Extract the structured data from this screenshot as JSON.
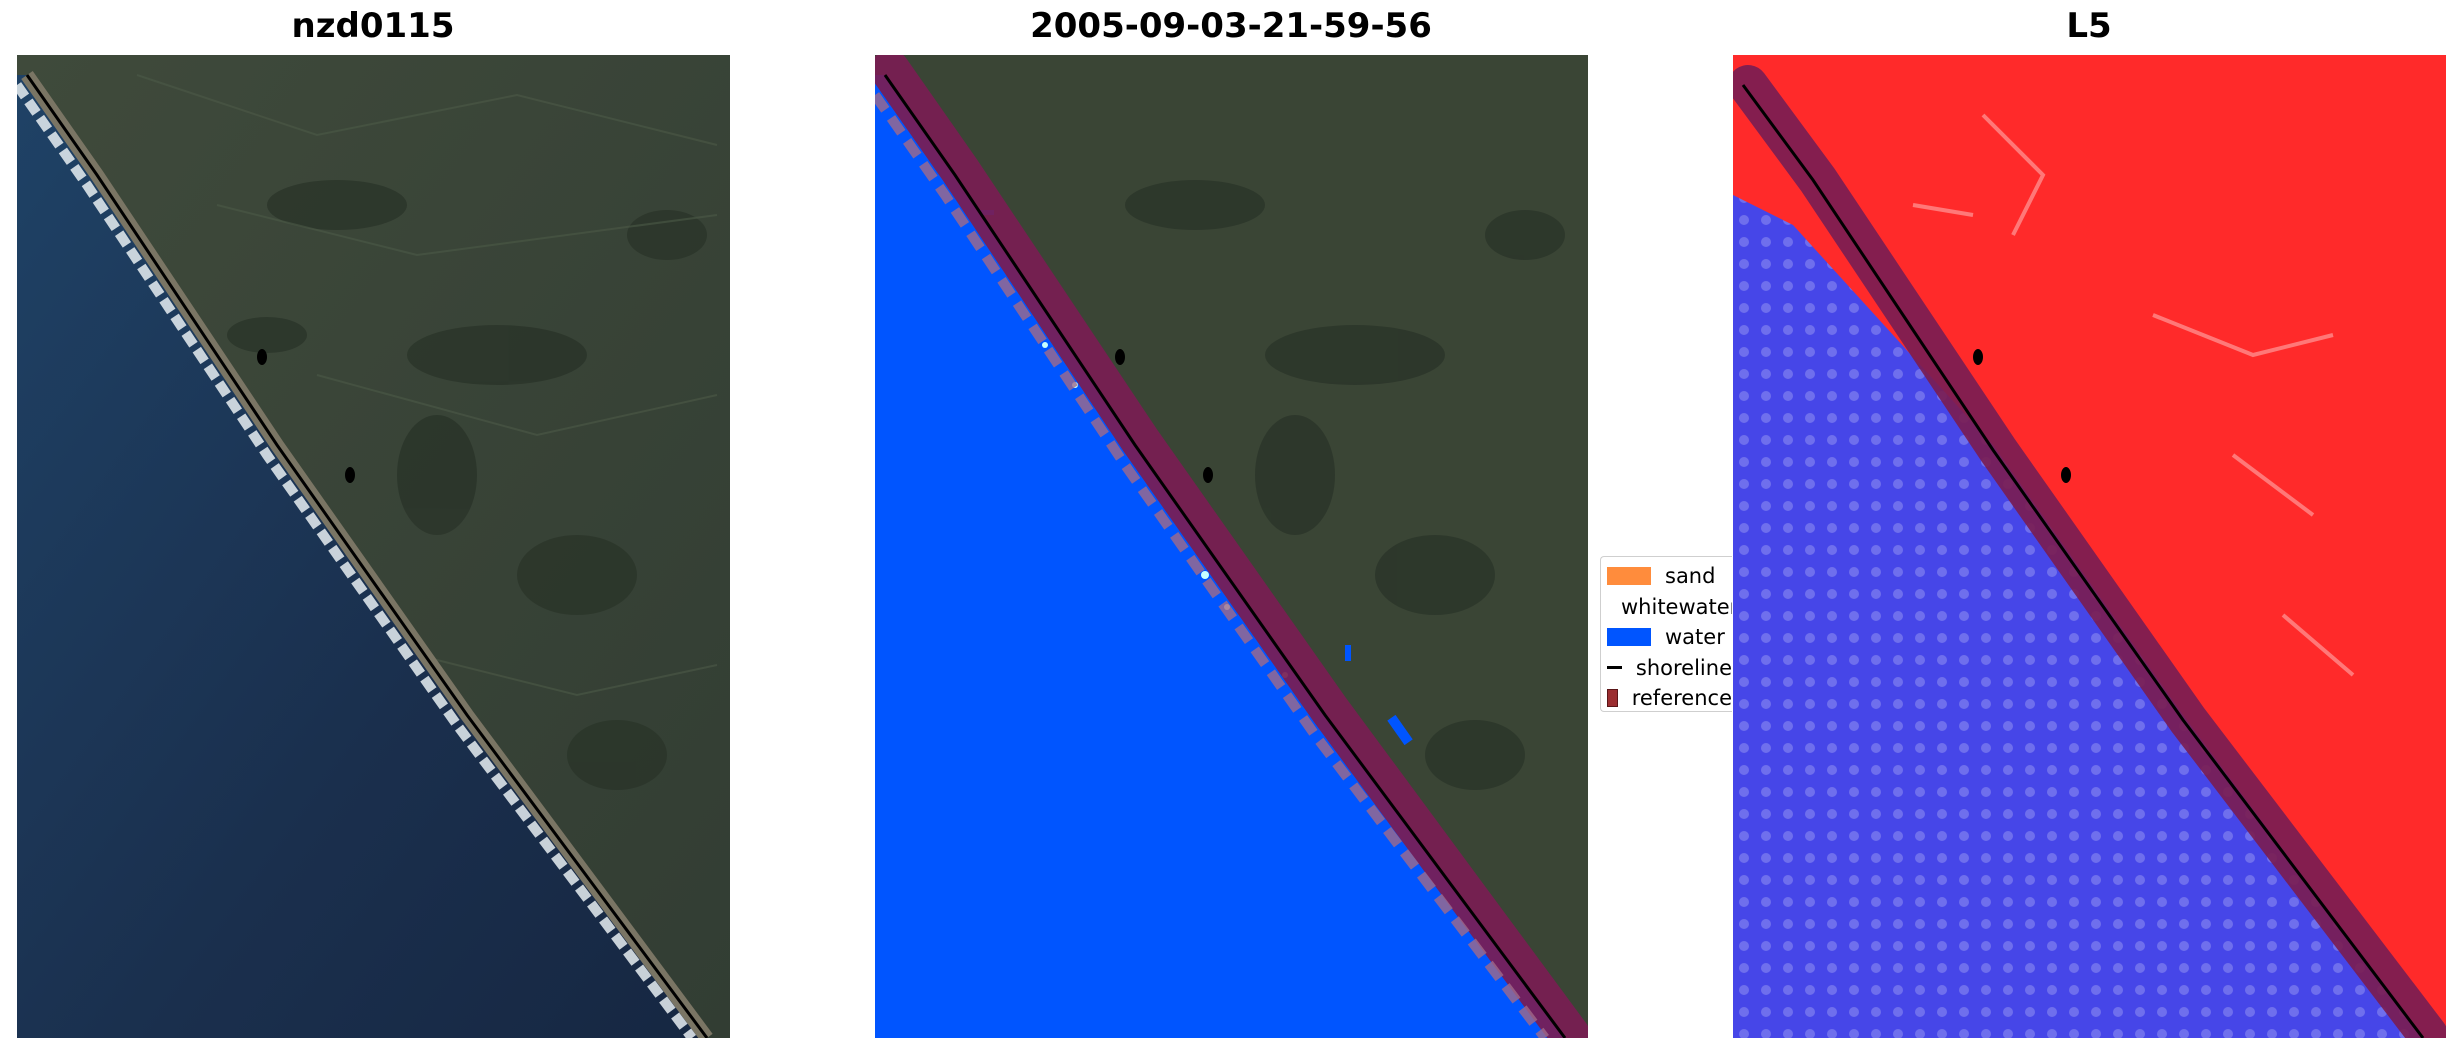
{
  "panels": [
    {
      "title": "nzd0115",
      "content": "RGB satellite image"
    },
    {
      "title": "2005-09-03-21-59-56",
      "content": "classified image"
    },
    {
      "title": "L5",
      "content": "MNDWI-like index image"
    }
  ],
  "legend": {
    "items": [
      {
        "label": "sand",
        "color": "#ff8c3c",
        "kind": "patch"
      },
      {
        "label": "whitewater",
        "color": "#c8ffff",
        "kind": "patch"
      },
      {
        "label": "water",
        "color": "#0055ff",
        "kind": "patch"
      },
      {
        "label": "shoreline",
        "color": "#000000",
        "kind": "line"
      },
      {
        "label": "reference",
        "color": "#9b2d30",
        "kind": "patch"
      }
    ]
  },
  "colors": {
    "land": "#3a4535",
    "ocean_rgb": "#1b3152",
    "surf": "#e8eef2",
    "water_class": "#0055ff",
    "reference_band": "#7a1d52",
    "index_land": "#ff2020",
    "index_water": "#4646e8",
    "shoreline": "#000000"
  }
}
